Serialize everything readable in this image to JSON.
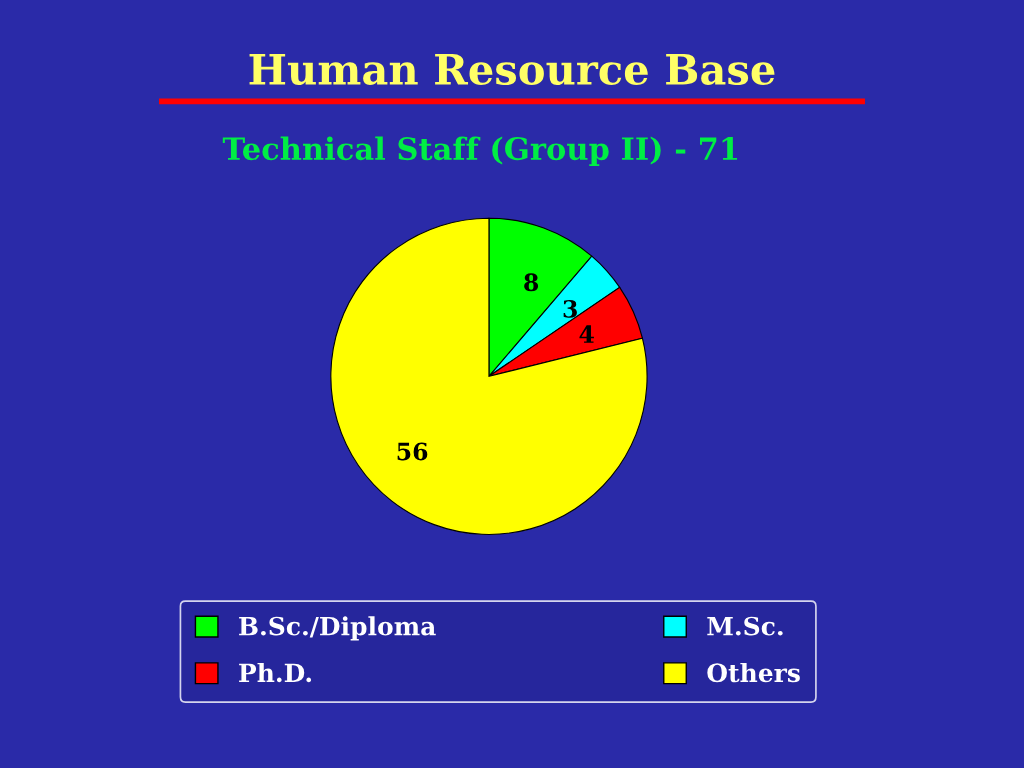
{
  "chart_data": {
    "type": "pie",
    "title": "Human Resource Base",
    "subtitle": "Technical Staff (Group II) - 71",
    "categories": [
      "B.Sc./Diploma",
      "M.Sc.",
      "Ph.D.",
      "Others"
    ],
    "values": [
      8,
      3,
      4,
      56
    ],
    "colors": [
      "#00ff00",
      "#00ffff",
      "#ff0000",
      "#ffff00"
    ],
    "data_labels": true,
    "legend": "bottom"
  }
}
